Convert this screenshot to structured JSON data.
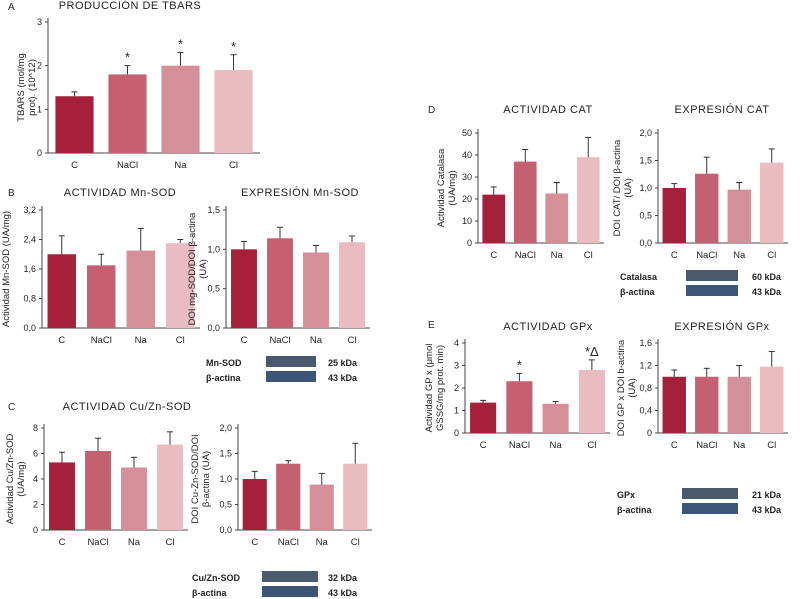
{
  "colors": [
    "#a5213a",
    "#c4606f",
    "#d58f98",
    "#e8bcc1"
  ],
  "panel_labels": [
    "A",
    "B",
    "C",
    "D",
    "E"
  ],
  "chart_data": [
    {
      "id": "A",
      "type": "bar",
      "title": "PRODUCCIÓN DE TBARS",
      "ylabel": [
        "TBARS (mol/mg",
        "prot). (10^12)"
      ],
      "categories": [
        "C",
        "NaCl",
        "Na",
        "Cl"
      ],
      "values": [
        1.3,
        1.8,
        2.0,
        1.9
      ],
      "errors": [
        0.1,
        0.2,
        0.3,
        0.35
      ],
      "annotations": [
        "",
        "*",
        "*",
        "*"
      ],
      "ylim": [
        0,
        3
      ],
      "ticks": [
        "0",
        "1",
        "2",
        "3"
      ]
    },
    {
      "id": "B1",
      "type": "bar",
      "title": "ACTIVIDAD Mn-SOD",
      "ylabel": [
        "Actividad Mn-SOD (UA/mg)"
      ],
      "categories": [
        "C",
        "NaCl",
        "Na",
        "Cl"
      ],
      "values": [
        2.0,
        1.7,
        2.1,
        2.3
      ],
      "errors": [
        0.5,
        0.3,
        0.6,
        0.1
      ],
      "annotations": [
        "",
        "",
        "",
        ""
      ],
      "ylim": [
        0,
        3.2
      ],
      "ticks": [
        "0,0",
        "0,8",
        "1,6",
        "2,4",
        "3,2"
      ]
    },
    {
      "id": "B2",
      "type": "bar",
      "title": "EXPRESIÓN Mn-SOD",
      "ylabel": [
        "DOI mg-SOD/DOI β-actina",
        "(UA)"
      ],
      "categories": [
        "C",
        "NaCl",
        "Na",
        "Cl"
      ],
      "values": [
        1.0,
        1.14,
        0.96,
        1.09
      ],
      "errors": [
        0.1,
        0.14,
        0.09,
        0.08
      ],
      "annotations": [
        "",
        "",
        "",
        ""
      ],
      "ylim": [
        0,
        1.5
      ],
      "ticks": [
        "0,0",
        "0,5",
        "1,0",
        "1,5"
      ]
    },
    {
      "id": "C1",
      "type": "bar",
      "title": "ACTIVIDAD Cu/Zn-SOD",
      "ylabel": [
        "Actividad Cu/Zn-SOD",
        "(UA/mg)"
      ],
      "categories": [
        "C",
        "NaCl",
        "Na",
        "Cl"
      ],
      "values": [
        5.3,
        6.2,
        4.9,
        6.7
      ],
      "errors": [
        0.8,
        1.0,
        0.8,
        1.0
      ],
      "annotations": [
        "",
        "",
        "",
        ""
      ],
      "ylim": [
        0,
        8
      ],
      "ticks": [
        "0",
        "2",
        "4",
        "6",
        "8"
      ]
    },
    {
      "id": "C2",
      "type": "bar",
      "title": "",
      "ylabel": [
        "DOI Cu-Zn-SOD/DOI",
        "β-actina (UA)"
      ],
      "categories": [
        "C",
        "NaCl",
        "Na",
        "Cl"
      ],
      "values": [
        1.0,
        1.3,
        0.89,
        1.3
      ],
      "errors": [
        0.15,
        0.06,
        0.22,
        0.4
      ],
      "annotations": [
        "",
        "",
        "",
        ""
      ],
      "ylim": [
        0,
        2.0
      ],
      "ticks": [
        "0,0",
        "0,5",
        "1,0",
        "1,5",
        "2,0"
      ]
    },
    {
      "id": "D1",
      "type": "bar",
      "title": "ACTIVIDAD CAT",
      "ylabel": [
        "Actividad Catalasa",
        "(UA/mg)"
      ],
      "categories": [
        "C",
        "NaCl",
        "Na",
        "Cl"
      ],
      "values": [
        22,
        37,
        22.5,
        39
      ],
      "errors": [
        3.5,
        5.5,
        5,
        9
      ],
      "annotations": [
        "",
        "",
        "",
        ""
      ],
      "ylim": [
        0,
        50
      ],
      "ticks": [
        "0",
        "10",
        "20",
        "30",
        "40",
        "50"
      ]
    },
    {
      "id": "D2",
      "type": "bar",
      "title": "EXPRESIÓN CAT",
      "ylabel": [
        "DOI CAT/ DOI β-actina",
        "(UA)"
      ],
      "categories": [
        "C",
        "NaCl",
        "Na",
        "Cl"
      ],
      "values": [
        1.0,
        1.26,
        0.97,
        1.46
      ],
      "errors": [
        0.08,
        0.3,
        0.13,
        0.25
      ],
      "annotations": [
        "",
        "",
        "",
        ""
      ],
      "ylim": [
        0,
        2.0
      ],
      "ticks": [
        "0,0",
        "0,5",
        "1,0",
        "1,5",
        "2,0"
      ]
    },
    {
      "id": "E1",
      "type": "bar",
      "title": "ACTIVIDAD GPx",
      "ylabel": [
        "Actividad GP x (μmol",
        "GSSG/mg prot. min)"
      ],
      "categories": [
        "C",
        "NaCl",
        "Na",
        "Cl"
      ],
      "values": [
        1.35,
        2.3,
        1.3,
        2.8
      ],
      "errors": [
        0.1,
        0.35,
        0.1,
        0.45
      ],
      "annotations": [
        "",
        "*",
        "",
        "*Δ"
      ],
      "ylim": [
        0,
        4
      ],
      "ticks": [
        "0",
        "1",
        "2",
        "3",
        "4"
      ]
    },
    {
      "id": "E2",
      "type": "bar",
      "title": "EXPRESIÓN GPx",
      "ylabel": [
        "DOI GP x DOI b-actina",
        "(UA)"
      ],
      "categories": [
        "C",
        "NaCl",
        "Na",
        "Cl"
      ],
      "values": [
        1.0,
        1.0,
        1.0,
        1.18
      ],
      "errors": [
        0.12,
        0.15,
        0.2,
        0.27
      ],
      "annotations": [
        "",
        "",
        "",
        ""
      ],
      "ylim": [
        0,
        1.6
      ],
      "ticks": [
        "0",
        "0,4",
        "0,8",
        "1,2",
        "1,6"
      ]
    }
  ],
  "blots": [
    {
      "id": "mnsod",
      "rows": [
        {
          "protein": "Mn-SOD",
          "kda": "25 kDa"
        },
        {
          "protein": "β-actina",
          "kda": "43 kDa"
        }
      ]
    },
    {
      "id": "cuznsod",
      "rows": [
        {
          "protein": "Cu/Zn-SOD",
          "kda": "32 kDa"
        },
        {
          "protein": "β-actina",
          "kda": "43 kDa"
        }
      ]
    },
    {
      "id": "cat",
      "rows": [
        {
          "protein": "Catalasa",
          "kda": "60 kDa"
        },
        {
          "protein": "β-actina",
          "kda": "43 kDa"
        }
      ]
    },
    {
      "id": "gpx",
      "rows": [
        {
          "protein": "GPx",
          "kda": "21 kDa"
        },
        {
          "protein": "β-actina",
          "kda": "43 kDa"
        }
      ]
    }
  ]
}
